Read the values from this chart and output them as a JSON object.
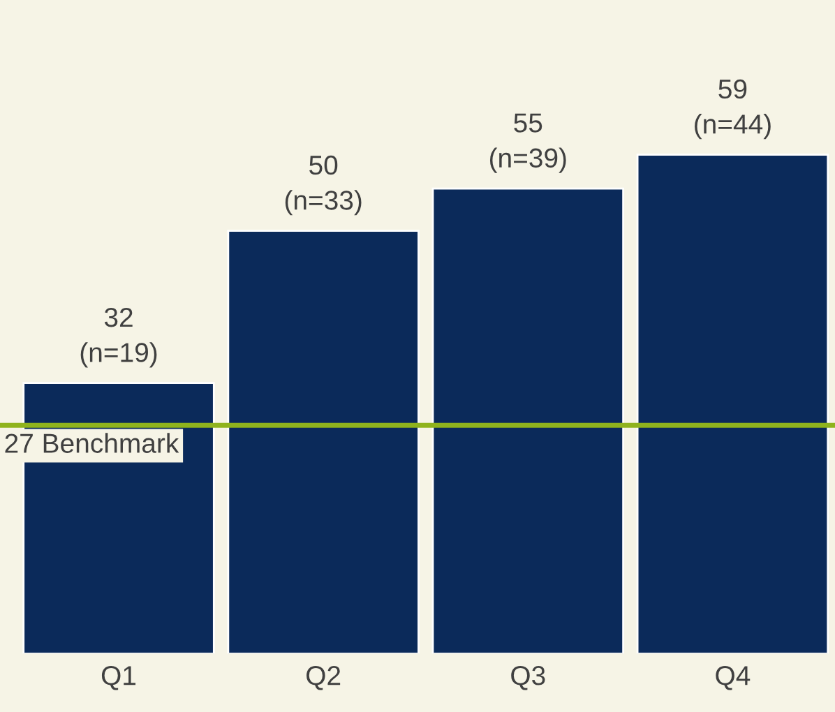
{
  "chart_data": {
    "type": "bar",
    "categories": [
      "Q1",
      "Q2",
      "Q3",
      "Q4"
    ],
    "values": [
      32,
      50,
      55,
      59
    ],
    "color": "#0b2a5a",
    "value_labels": [
      "32\n(n=19)",
      "50\n(n=33)",
      "55\n(n=39)",
      "59\n(n=44)"
    ],
    "ref_lines": [
      {
        "axis": "y",
        "value": 27,
        "label": "27 Benchmark",
        "color": "#8fb31d"
      }
    ],
    "grid": false,
    "legend": false,
    "tick_labels": "x"
  }
}
